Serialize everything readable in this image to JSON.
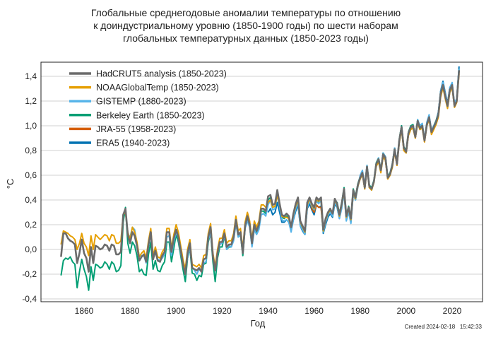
{
  "chart_data": {
    "type": "line",
    "title_lines": [
      "Глобальные среднегодовые аномалии температуры по отношению",
      "к доиндустриальному уровню (1850-1900 годы) по шести наборам",
      "глобальных температурных данных (1850-2023 годы)"
    ],
    "xlabel": "Год",
    "ylabel": "°C",
    "xlim": [
      1841,
      2032
    ],
    "ylim": [
      -0.42,
      1.53
    ],
    "xticks": [
      1860,
      1880,
      1900,
      1920,
      1940,
      1960,
      1980,
      2000,
      2020
    ],
    "yticks": [
      -0.4,
      -0.2,
      0.0,
      0.2,
      0.4,
      0.6,
      0.8,
      1.0,
      1.2,
      1.4
    ],
    "ytick_labels": [
      "-0,4",
      "-0,2",
      "0,0",
      "0,2",
      "0,4",
      "0,6",
      "0,8",
      "1,0",
      "1,2",
      "1,4"
    ],
    "grid": "horizontal",
    "legend_position": "top-left",
    "footer": "Created 2024-02-18   15:42:33",
    "series": [
      {
        "name": "HadCRUT5 analysis (1850-2023)",
        "color": "#6b6b6b",
        "start": 1850,
        "values": [
          -0.06,
          0.13,
          0.13,
          0.09,
          0.07,
          0.06,
          0.04,
          -0.11,
          -0.03,
          0.08,
          -0.03,
          -0.07,
          -0.18,
          0.02,
          -0.11,
          0.03,
          0.02,
          0.0,
          0.01,
          0.04,
          0.03,
          -0.01,
          0.04,
          0.03,
          -0.04,
          -0.04,
          -0.02,
          0.28,
          0.33,
          0.12,
          0.05,
          0.14,
          0.11,
          0.03,
          -0.09,
          -0.06,
          -0.04,
          -0.1,
          0.04,
          0.14,
          -0.08,
          -0.01,
          -0.09,
          -0.1,
          -0.05,
          -0.02,
          0.14,
          0.14,
          -0.02,
          0.09,
          0.16,
          0.1,
          -0.01,
          -0.12,
          -0.2,
          -0.03,
          0.05,
          -0.15,
          -0.16,
          -0.17,
          -0.15,
          -0.18,
          -0.08,
          -0.07,
          0.1,
          0.18,
          -0.06,
          -0.17,
          -0.03,
          0.06,
          0.06,
          0.13,
          0.02,
          0.04,
          0.04,
          0.1,
          0.24,
          0.12,
          0.14,
          -0.03,
          0.19,
          0.27,
          0.2,
          0.05,
          0.2,
          0.15,
          0.2,
          0.33,
          0.33,
          0.31,
          0.43,
          0.44,
          0.36,
          0.37,
          0.48,
          0.37,
          0.28,
          0.27,
          0.29,
          0.27,
          0.18,
          0.29,
          0.37,
          0.42,
          0.23,
          0.19,
          0.15,
          0.38,
          0.42,
          0.37,
          0.34,
          0.42,
          0.4,
          0.42,
          0.16,
          0.25,
          0.3,
          0.33,
          0.29,
          0.41,
          0.37,
          0.28,
          0.37,
          0.49,
          0.27,
          0.34,
          0.25,
          0.48,
          0.42,
          0.52,
          0.58,
          0.62,
          0.5,
          0.67,
          0.51,
          0.49,
          0.55,
          0.69,
          0.73,
          0.64,
          0.77,
          0.74,
          0.58,
          0.61,
          0.68,
          0.81,
          0.69,
          0.88,
          0.99,
          0.82,
          0.79,
          0.94,
          0.99,
          1.0,
          0.91,
          1.04,
          0.98,
          1.0,
          0.88,
          1.01,
          1.07,
          0.95,
          0.99,
          1.03,
          1.09,
          1.26,
          1.33,
          1.24,
          1.16,
          1.29,
          1.33,
          1.16,
          1.2,
          1.45
        ]
      },
      {
        "name": "NOAAGlobalTemp  (1850-2023)",
        "color": "#E69F00",
        "start": 1850,
        "values": [
          0.04,
          0.15,
          0.14,
          0.13,
          0.11,
          0.1,
          0.08,
          0.0,
          0.05,
          0.13,
          0.05,
          0.02,
          -0.05,
          0.11,
          0.0,
          0.12,
          0.1,
          0.08,
          0.1,
          0.12,
          0.11,
          0.07,
          0.12,
          0.11,
          0.05,
          0.05,
          0.07,
          0.28,
          0.3,
          0.14,
          0.08,
          0.18,
          0.14,
          0.06,
          -0.06,
          -0.03,
          -0.01,
          -0.07,
          0.07,
          0.17,
          -0.05,
          0.02,
          -0.06,
          -0.07,
          -0.02,
          0.01,
          0.17,
          0.17,
          0.01,
          0.12,
          0.2,
          0.14,
          0.03,
          -0.08,
          -0.16,
          0.0,
          0.08,
          -0.12,
          -0.13,
          -0.14,
          -0.12,
          -0.15,
          -0.05,
          -0.04,
          0.13,
          0.21,
          -0.03,
          -0.14,
          0.0,
          0.09,
          0.09,
          0.16,
          0.05,
          0.07,
          0.07,
          0.13,
          0.27,
          0.15,
          0.17,
          0.0,
          0.22,
          0.3,
          0.23,
          0.08,
          0.23,
          0.18,
          0.23,
          0.36,
          0.36,
          0.34,
          0.38,
          0.4,
          0.34,
          0.35,
          0.44,
          0.36,
          0.27,
          0.26,
          0.26,
          0.25,
          0.18,
          0.28,
          0.35,
          0.4,
          0.22,
          0.18,
          0.14,
          0.36,
          0.41,
          0.36,
          0.33,
          0.4,
          0.39,
          0.41,
          0.15,
          0.24,
          0.29,
          0.32,
          0.29,
          0.4,
          0.36,
          0.27,
          0.36,
          0.47,
          0.26,
          0.33,
          0.24,
          0.46,
          0.41,
          0.51,
          0.57,
          0.61,
          0.49,
          0.66,
          0.5,
          0.48,
          0.54,
          0.67,
          0.71,
          0.62,
          0.75,
          0.72,
          0.57,
          0.6,
          0.66,
          0.79,
          0.68,
          0.86,
          0.97,
          0.8,
          0.78,
          0.92,
          0.97,
          0.98,
          0.9,
          1.02,
          0.97,
          0.98,
          0.87,
          1.0,
          1.05,
          0.93,
          0.97,
          1.01,
          1.07,
          1.23,
          1.31,
          1.22,
          1.14,
          1.27,
          1.31,
          1.15,
          1.19,
          1.42
        ]
      },
      {
        "name": "GISTEMP (1880-2023)",
        "color": "#56B4E9",
        "start": 1880,
        "values": [
          0.1,
          0.18,
          0.16,
          0.05,
          -0.06,
          -0.05,
          -0.05,
          -0.11,
          0.02,
          0.13,
          -0.05,
          0.0,
          -0.08,
          -0.09,
          -0.07,
          -0.04,
          0.1,
          0.11,
          -0.05,
          0.06,
          0.14,
          0.09,
          -0.03,
          -0.12,
          -0.18,
          -0.07,
          0.02,
          -0.14,
          -0.17,
          -0.2,
          -0.16,
          -0.18,
          -0.11,
          -0.1,
          0.08,
          0.13,
          -0.05,
          -0.16,
          -0.04,
          0.04,
          0.05,
          0.11,
          0.0,
          0.03,
          0.02,
          0.07,
          0.21,
          0.1,
          0.12,
          -0.03,
          0.17,
          0.23,
          0.18,
          0.02,
          0.16,
          0.12,
          0.16,
          0.28,
          0.29,
          0.27,
          0.36,
          0.4,
          0.32,
          0.33,
          0.45,
          0.34,
          0.24,
          0.23,
          0.24,
          0.22,
          0.14,
          0.25,
          0.33,
          0.38,
          0.19,
          0.16,
          0.12,
          0.34,
          0.39,
          0.35,
          0.32,
          0.39,
          0.37,
          0.4,
          0.14,
          0.22,
          0.28,
          0.3,
          0.27,
          0.38,
          0.35,
          0.25,
          0.33,
          0.46,
          0.23,
          0.3,
          0.21,
          0.45,
          0.4,
          0.5,
          0.6,
          0.64,
          0.52,
          0.68,
          0.51,
          0.48,
          0.55,
          0.68,
          0.74,
          0.64,
          0.78,
          0.75,
          0.58,
          0.6,
          0.68,
          0.82,
          0.7,
          0.86,
          0.98,
          0.81,
          0.79,
          0.93,
          0.99,
          0.99,
          0.92,
          1.05,
          1.0,
          1.02,
          0.89,
          1.03,
          1.09,
          0.96,
          1.0,
          1.03,
          1.1,
          1.27,
          1.35,
          1.26,
          1.17,
          1.31,
          1.35,
          1.18,
          1.22,
          1.46
        ]
      },
      {
        "name": "Berkeley Earth (1850-2023)",
        "color": "#009E73",
        "start": 1850,
        "values": [
          -0.21,
          -0.09,
          -0.07,
          -0.08,
          -0.06,
          -0.1,
          -0.12,
          -0.31,
          -0.18,
          -0.08,
          -0.16,
          -0.22,
          -0.33,
          -0.14,
          -0.25,
          -0.12,
          -0.13,
          -0.15,
          -0.14,
          -0.1,
          -0.12,
          -0.16,
          -0.1,
          -0.12,
          -0.18,
          -0.17,
          -0.13,
          0.22,
          0.34,
          0.05,
          -0.03,
          0.06,
          0.03,
          -0.05,
          -0.18,
          -0.16,
          -0.2,
          -0.21,
          -0.04,
          0.06,
          -0.16,
          -0.09,
          -0.17,
          -0.18,
          -0.13,
          -0.1,
          0.06,
          0.06,
          -0.1,
          0.01,
          0.12,
          0.06,
          -0.05,
          -0.16,
          -0.26,
          -0.07,
          0.01,
          -0.19,
          -0.2,
          -0.25,
          -0.21,
          -0.22,
          -0.12,
          -0.11,
          0.06,
          0.14,
          -0.1,
          -0.26,
          -0.07,
          0.02,
          0.02,
          0.11,
          0.0,
          0.02,
          0.02,
          0.08,
          0.22,
          0.1,
          0.12,
          -0.05,
          0.17,
          0.25,
          0.18,
          0.03,
          0.18,
          0.13,
          0.18,
          0.31,
          0.31,
          0.29,
          0.4,
          0.42,
          0.34,
          0.35,
          0.46,
          0.35,
          0.26,
          0.25,
          0.27,
          0.25,
          0.16,
          0.27,
          0.35,
          0.4,
          0.21,
          0.17,
          0.13,
          0.36,
          0.4,
          0.35,
          0.32,
          0.4,
          0.38,
          0.4,
          0.14,
          0.23,
          0.28,
          0.31,
          0.27,
          0.39,
          0.38,
          0.29,
          0.38,
          0.5,
          0.28,
          0.35,
          0.26,
          0.49,
          0.43,
          0.53,
          0.59,
          0.63,
          0.51,
          0.68,
          0.52,
          0.5,
          0.56,
          0.7,
          0.74,
          0.65,
          0.78,
          0.75,
          0.59,
          0.62,
          0.69,
          0.82,
          0.7,
          0.89,
          1.0,
          0.83,
          0.8,
          0.95,
          1.0,
          1.01,
          0.92,
          1.05,
          0.99,
          1.01,
          0.89,
          1.02,
          1.08,
          0.96,
          1.0,
          1.04,
          1.1,
          1.27,
          1.34,
          1.25,
          1.17,
          1.3,
          1.34,
          1.17,
          1.21,
          1.46
        ]
      },
      {
        "name": "JRA-55 (1958-2023)",
        "color": "#D55E00",
        "start": 1958,
        "values": [
          0.41,
          0.33,
          0.3,
          0.36,
          0.34,
          0.34,
          0.15,
          0.22,
          0.28,
          0.31,
          0.28,
          0.39,
          0.36,
          0.27,
          0.36,
          0.48,
          0.26,
          0.33,
          0.24,
          0.47,
          0.42,
          0.52,
          0.57,
          0.61,
          0.49,
          0.66,
          0.5,
          0.48,
          0.55,
          0.68,
          0.72,
          0.63,
          0.76,
          0.72,
          0.57,
          0.6,
          0.67,
          0.8,
          0.68,
          0.87,
          0.98,
          0.8,
          0.78,
          0.93,
          0.98,
          0.99,
          0.9,
          1.03,
          0.97,
          0.99,
          0.87,
          1.0,
          1.06,
          0.94,
          0.98,
          1.02,
          1.08,
          1.25,
          1.32,
          1.23,
          1.15,
          1.28,
          1.32,
          1.15,
          1.19,
          1.44
        ]
      },
      {
        "name": "ERA5 (1940-2023)",
        "color": "#0072B2",
        "start": 1940,
        "values": [
          0.3,
          0.33,
          0.28,
          0.3,
          0.38,
          0.3,
          0.22,
          0.22,
          0.24,
          0.22,
          0.15,
          0.24,
          0.31,
          0.36,
          0.19,
          0.15,
          0.12,
          0.33,
          0.37,
          0.32,
          0.28,
          0.36,
          0.34,
          0.35,
          0.13,
          0.2,
          0.26,
          0.29,
          0.26,
          0.37,
          0.34,
          0.25,
          0.35,
          0.46,
          0.24,
          0.31,
          0.22,
          0.45,
          0.4,
          0.51,
          0.58,
          0.62,
          0.49,
          0.67,
          0.5,
          0.48,
          0.55,
          0.69,
          0.74,
          0.64,
          0.78,
          0.75,
          0.58,
          0.61,
          0.69,
          0.82,
          0.7,
          0.88,
          1.0,
          0.82,
          0.78,
          0.93,
          0.99,
          1.0,
          0.91,
          1.04,
          0.98,
          1.01,
          0.89,
          1.02,
          1.08,
          0.96,
          1.0,
          1.04,
          1.11,
          1.28,
          1.36,
          1.27,
          1.18,
          1.31,
          1.31,
          1.18,
          1.22,
          1.48
        ]
      }
    ]
  }
}
